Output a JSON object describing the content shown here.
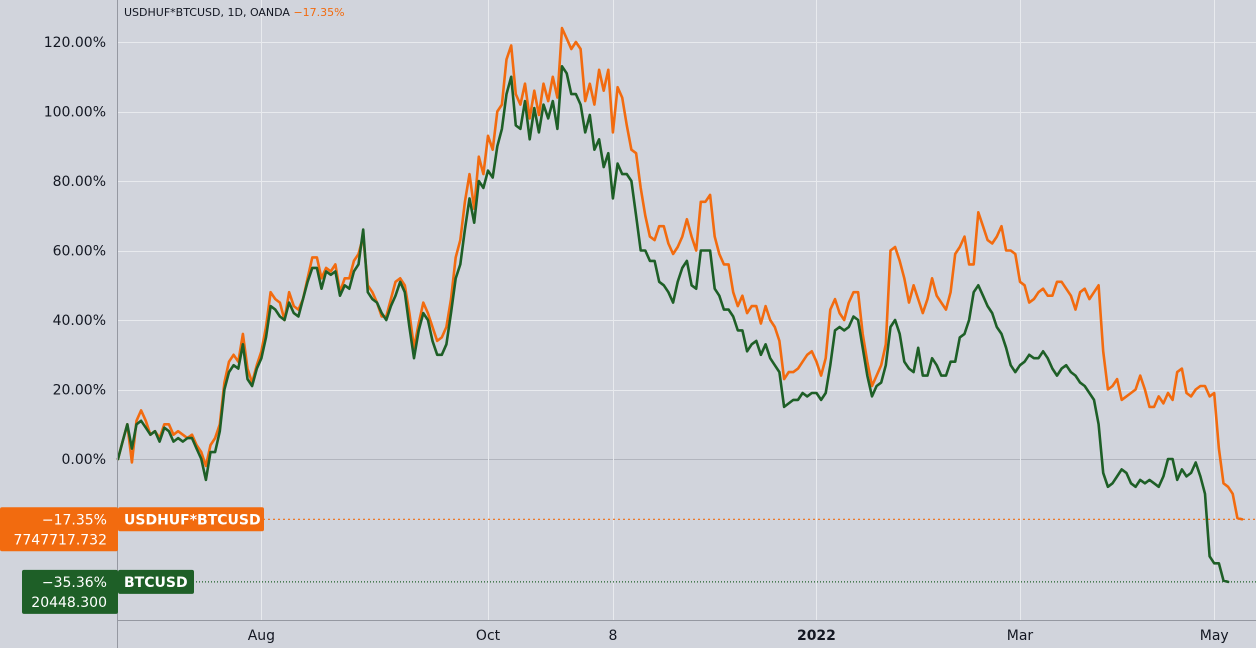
{
  "legend": {
    "symbol": "USDHUF*BTCUSD",
    "interval": "1D",
    "source": "OANDA",
    "change": "−17.35%"
  },
  "colors": {
    "background": "#d1d4dc",
    "grid": "#e8eaee",
    "axis": "#9598a1",
    "orange": "#f26b0f",
    "green": "#1e5f27",
    "zero": "#b2b5be"
  },
  "chart_data": {
    "type": "line",
    "y_unit": "%",
    "ylim": [
      -44,
      126
    ],
    "y_ticks": [
      "120.00%",
      "100.00%",
      "80.00%",
      "60.00%",
      "40.00%",
      "20.00%",
      "0.00%"
    ],
    "y_tick_values": [
      120,
      100,
      80,
      60,
      40,
      20,
      0
    ],
    "x_ticks": [
      {
        "label": "Aug",
        "index": 31,
        "bold": false
      },
      {
        "label": "Oct",
        "index": 80,
        "bold": false
      },
      {
        "label": "8",
        "index": 107,
        "bold": false
      },
      {
        "label": "2022",
        "index": 151,
        "bold": true
      },
      {
        "label": "Mar",
        "index": 195,
        "bold": false
      },
      {
        "label": "May",
        "index": 237,
        "bold": false
      }
    ],
    "grid": true,
    "series": [
      {
        "name": "USDHUF*BTCUSD",
        "color": "#f26b0f",
        "last_percent": "−17.35%",
        "last_value": "7747717.732",
        "values": [
          0,
          5,
          10,
          -1,
          11,
          14,
          11,
          7,
          8,
          6,
          10,
          10,
          7,
          8,
          7,
          6,
          7,
          4,
          2,
          -2,
          4,
          6,
          10,
          22,
          28,
          30,
          28,
          36,
          26,
          22,
          27,
          31,
          38,
          48,
          46,
          45,
          40,
          48,
          44,
          43,
          46,
          52,
          58,
          58,
          52,
          55,
          54,
          56,
          48,
          52,
          52,
          57,
          59,
          64,
          50,
          48,
          45,
          41,
          41,
          46,
          51,
          52,
          50,
          42,
          32,
          39,
          45,
          42,
          38,
          34,
          35,
          38,
          46,
          58,
          63,
          74,
          82,
          72,
          87,
          82,
          93,
          89,
          100,
          102,
          115,
          119,
          105,
          102,
          108,
          98,
          106,
          99,
          108,
          103,
          110,
          104,
          124,
          121,
          118,
          120,
          118,
          103,
          108,
          102,
          112,
          106,
          112,
          94,
          107,
          104,
          96,
          89,
          88,
          78,
          70,
          64,
          63,
          67,
          67,
          62,
          59,
          61,
          64,
          69,
          64,
          60,
          74,
          74,
          76,
          64,
          59,
          56,
          56,
          48,
          44,
          47,
          42,
          44,
          44,
          39,
          44,
          40,
          38,
          34,
          23,
          25,
          25,
          26,
          28,
          30,
          31,
          28,
          24,
          29,
          43,
          46,
          42,
          40,
          45,
          48,
          48,
          36,
          28,
          21,
          24,
          27,
          33,
          60,
          61,
          57,
          52,
          45,
          50,
          46,
          42,
          46,
          52,
          47,
          45,
          43,
          48,
          59,
          61,
          64,
          56,
          56,
          71,
          67,
          63,
          62,
          64,
          67,
          60,
          60,
          59,
          51,
          50,
          45,
          46,
          48,
          49,
          47,
          47,
          51,
          51,
          49,
          47,
          43,
          48,
          49,
          46,
          48,
          50,
          31,
          20,
          21,
          23,
          17,
          18,
          19,
          20,
          24,
          20,
          15,
          15,
          18,
          16,
          19,
          17,
          25,
          26,
          19,
          18,
          20,
          21,
          21,
          18,
          19,
          3,
          -7,
          -8,
          -10,
          -17,
          -17.35
        ]
      },
      {
        "name": "BTCUSD",
        "color": "#1e5f27",
        "last_percent": "−35.36%",
        "last_value": "20448.300",
        "values": [
          0,
          5,
          10,
          3,
          10,
          11,
          9,
          7,
          8,
          5,
          9,
          8,
          5,
          6,
          5,
          6,
          6,
          3,
          0,
          -6,
          2,
          2,
          8,
          20,
          25,
          27,
          26,
          33,
          23,
          21,
          26,
          29,
          35,
          44,
          43,
          41,
          40,
          45,
          42,
          41,
          46,
          51,
          55,
          55,
          49,
          54,
          53,
          54,
          47,
          50,
          49,
          54,
          56,
          66,
          48,
          46,
          45,
          42,
          40,
          44,
          47,
          51,
          48,
          38,
          29,
          37,
          42,
          40,
          34,
          30,
          30,
          33,
          42,
          52,
          56,
          66,
          75,
          68,
          80,
          78,
          83,
          81,
          90,
          95,
          105,
          110,
          96,
          95,
          103,
          92,
          101,
          94,
          102,
          98,
          103,
          95,
          113,
          111,
          105,
          105,
          102,
          94,
          99,
          89,
          92,
          84,
          88,
          75,
          85,
          82,
          82,
          80,
          70,
          60,
          60,
          57,
          57,
          51,
          50,
          48,
          45,
          51,
          55,
          57,
          50,
          49,
          60,
          60,
          60,
          49,
          47,
          43,
          43,
          41,
          37,
          37,
          31,
          33,
          34,
          30,
          33,
          29,
          27,
          25,
          15,
          16,
          17,
          17,
          19,
          18,
          19,
          19,
          17,
          19,
          27,
          37,
          38,
          37,
          38,
          41,
          40,
          32,
          24,
          18,
          21,
          22,
          27,
          38,
          40,
          36,
          28,
          26,
          25,
          32,
          24,
          24,
          29,
          27,
          24,
          24,
          28,
          28,
          35,
          36,
          40,
          48,
          50,
          47,
          44,
          42,
          38,
          36,
          32,
          27,
          25,
          27,
          28,
          30,
          29,
          29,
          31,
          29,
          26,
          24,
          26,
          27,
          25,
          24,
          22,
          21,
          19,
          17,
          10,
          -4,
          -8,
          -7,
          -5,
          -3,
          -4,
          -7,
          -8,
          -6,
          -7,
          -6,
          -7,
          -8,
          -5,
          0,
          0,
          -6,
          -3,
          -5,
          -4,
          -1,
          -5,
          -10,
          -28,
          -30,
          -30,
          -35,
          -35.36
        ]
      }
    ]
  }
}
